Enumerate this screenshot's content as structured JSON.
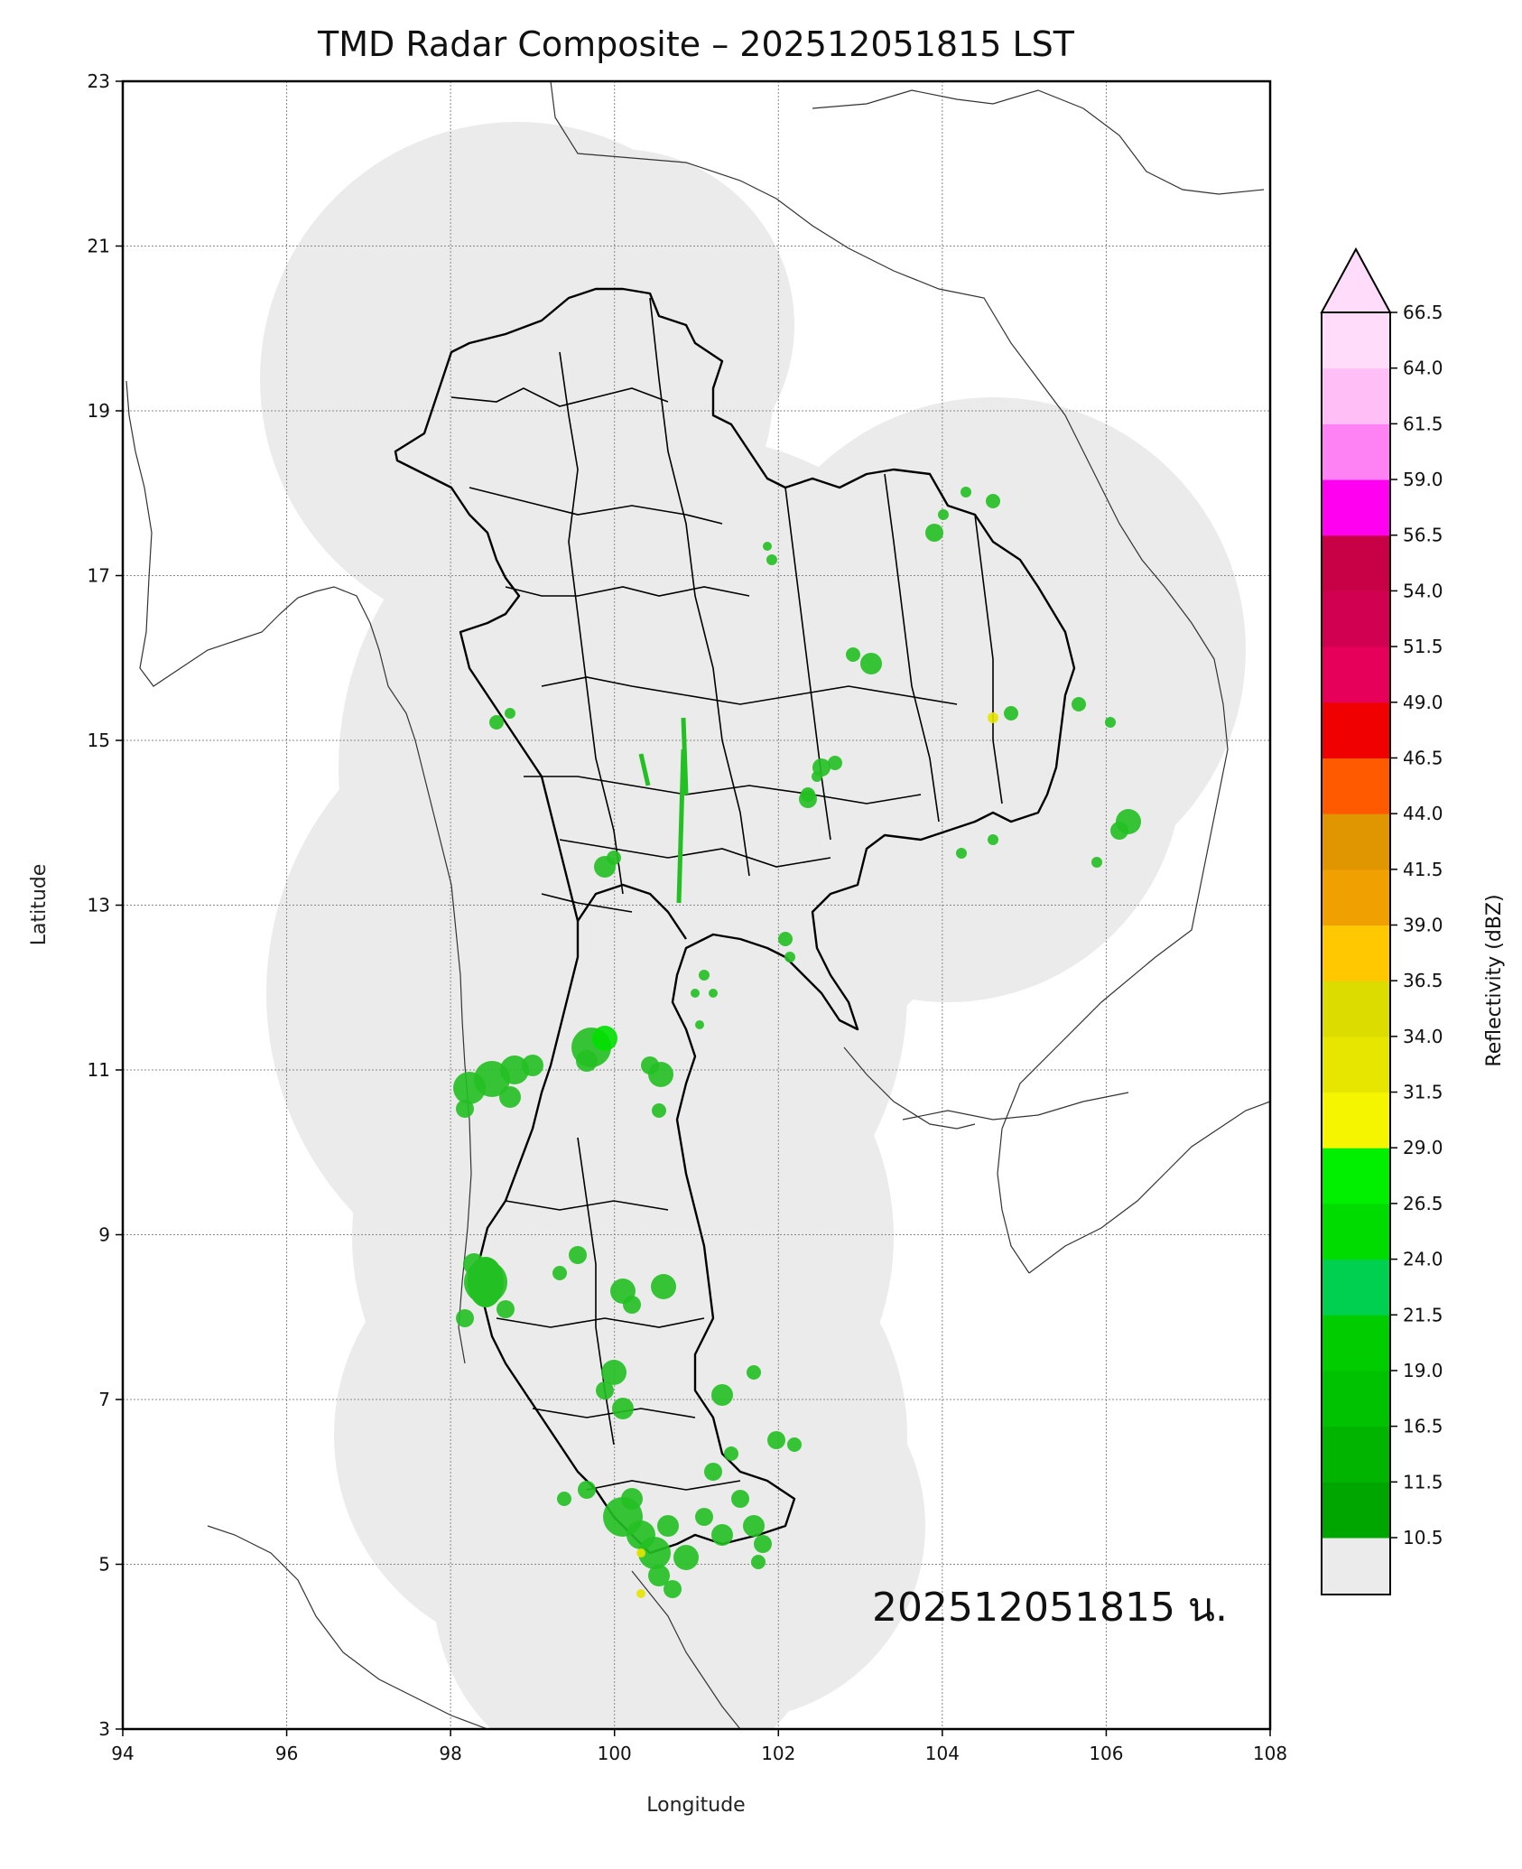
{
  "title": "TMD Radar Composite – 202512051815 LST",
  "timestamp_label": "202512051815 น.",
  "axes": {
    "xlabel": "Longitude",
    "ylabel": "Latitude",
    "xlim": [
      94,
      108
    ],
    "ylim": [
      3,
      23
    ],
    "xticks": [
      "94",
      "96",
      "98",
      "100",
      "102",
      "104",
      "106",
      "108"
    ],
    "yticks": [
      "3",
      "5",
      "7",
      "9",
      "11",
      "13",
      "15",
      "17",
      "19",
      "21",
      "23"
    ],
    "grid": true
  },
  "colorbar": {
    "label": "Reflectivity (dBZ)",
    "ticks": [
      "10.5",
      "11.5",
      "16.5",
      "19.0",
      "21.5",
      "24.0",
      "26.5",
      "29.0",
      "31.5",
      "34.0",
      "36.5",
      "39.0",
      "41.5",
      "44.0",
      "46.5",
      "49.0",
      "51.5",
      "54.0",
      "56.5",
      "59.0",
      "61.5",
      "64.0",
      "66.5"
    ],
    "colors": [
      "#00a600",
      "#00b400",
      "#00c200",
      "#00cc00",
      "#00d050",
      "#00dc00",
      "#00f000",
      "#f5f500",
      "#e6e600",
      "#dcdc00",
      "#ffc800",
      "#f0a000",
      "#e09600",
      "#ff5a00",
      "#f00000",
      "#e6005a",
      "#d20050",
      "#c80046",
      "#ff00f0",
      "#ff82f5",
      "#ffbef5",
      "#ffdcfa"
    ],
    "under_color": "#ebebeb",
    "extend": "max"
  },
  "colors": {
    "coverage": "#ebebeb",
    "echo": "#22c022",
    "echo_bright": "#00e000",
    "echo_yellow": "#e6e600",
    "border": "#000000",
    "coast": "#333333",
    "grid": "#888888"
  }
}
